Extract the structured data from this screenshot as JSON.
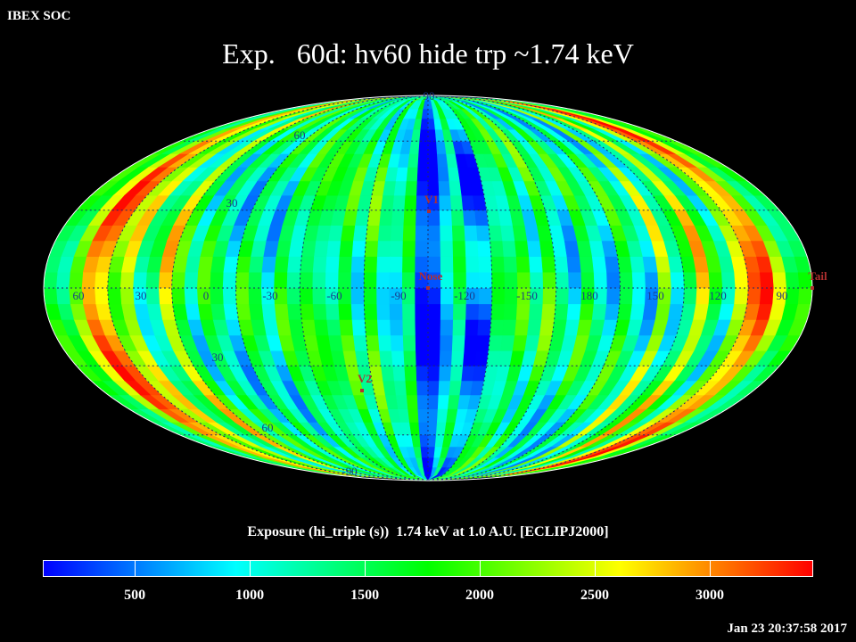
{
  "header": {
    "soc_label": "IBEX SOC",
    "title": "Exp.   60d: hv60 hide trp ~1.74 keV",
    "timestamp": "Jan 23 20:37:58 2017"
  },
  "map": {
    "projection": "Mollweide (aitoff-like), ecliptic J2000",
    "center_longitude_label": "-90",
    "longitude_labels": [
      "60",
      "30",
      "0",
      "-30",
      "-60",
      "-90",
      "-120",
      "-150",
      "180",
      "150",
      "120",
      "90"
    ],
    "latitude_labels": [
      "90",
      "60",
      "30",
      "30",
      "60",
      "-90"
    ],
    "markers": [
      {
        "label": "V1",
        "lon": -105,
        "lat": 34
      },
      {
        "label": "Nose",
        "lon": -105,
        "lat": 5
      },
      {
        "label": "V2",
        "lon": -75,
        "lat": -34
      },
      {
        "label": "Tail",
        "lon": 75,
        "lat": 5
      }
    ],
    "marker_color": "#b03030",
    "grid_color": "#1b2a6b"
  },
  "colorbar": {
    "title": "Exposure (hi_triple (s))  1.74 keV at 1.0 A.U. [ECLIPJ2000]",
    "tick_labels": [
      "500",
      "1000",
      "1500",
      "2000",
      "2500",
      "3000"
    ],
    "tick_values": [
      500,
      1000,
      1500,
      2000,
      2500,
      3000
    ],
    "min": 100,
    "max": 3450,
    "colors": [
      "#0000ff",
      "#00ffff",
      "#00ff00",
      "#ffff00",
      "#ff0000"
    ]
  }
}
